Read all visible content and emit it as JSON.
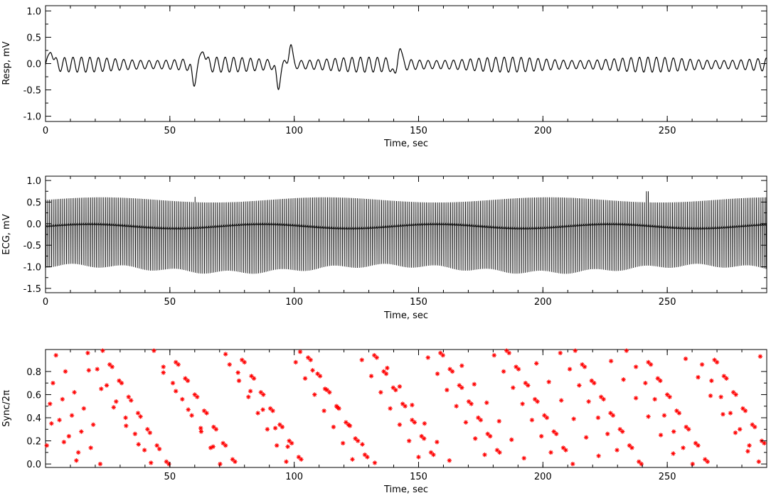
{
  "chart_data": [
    {
      "type": "line",
      "xlabel": "Time, sec",
      "ylabel": "Resp, mV",
      "xlim": [
        0,
        290
      ],
      "ylim": [
        -1.1,
        1.1
      ],
      "xticks": [
        0,
        50,
        100,
        150,
        200,
        250
      ],
      "yticks": [
        -1.0,
        -0.5,
        0.0,
        0.5,
        1.0
      ],
      "ytick_labels": [
        "-1.0",
        "-0.5",
        "0.0",
        "0.5",
        "1.0"
      ],
      "grid": false,
      "color": "#000000",
      "signal": {
        "baseline": -0.02,
        "amplitude": 0.13,
        "period_sec": 3.4,
        "events": [
          {
            "t": 2.3,
            "value": 0.3
          },
          {
            "t": 59.5,
            "value": -0.4
          },
          {
            "t": 63.5,
            "value": 0.32
          },
          {
            "t": 93.5,
            "value": -0.48
          },
          {
            "t": 98.5,
            "value": 0.36
          },
          {
            "t": 140.5,
            "value": -0.3
          },
          {
            "t": 142.3,
            "value": 0.36
          }
        ]
      }
    },
    {
      "type": "line",
      "xlabel": "Time, sec",
      "ylabel": "ECG, mV",
      "xlim": [
        0,
        290
      ],
      "ylim": [
        -1.6,
        1.1
      ],
      "xticks": [
        0,
        50,
        100,
        150,
        200,
        250
      ],
      "yticks": [
        -1.5,
        -1.0,
        -0.5,
        0.0,
        0.5,
        1.0
      ],
      "ytick_labels": [
        "-1.5",
        "-1.0",
        "-0.5",
        "0.0",
        "0.5",
        "1.0"
      ],
      "grid": false,
      "color": "#000000",
      "signal": {
        "beat_interval_sec": 0.75,
        "r_peak": 0.55,
        "s_trough": -1.05,
        "baseline": -0.08,
        "events": [
          {
            "t": 60,
            "value": 0.62
          },
          {
            "t": 242,
            "value": 0.75
          }
        ]
      }
    },
    {
      "type": "scatter",
      "xlabel": "Time, sec",
      "ylabel": "Sync/2π",
      "xlim": [
        0,
        290
      ],
      "ylim": [
        -0.03,
        0.99
      ],
      "xticks": [
        50,
        100,
        150,
        200,
        250
      ],
      "yticks": [
        0.0,
        0.2,
        0.4,
        0.6,
        0.8
      ],
      "ytick_labels": [
        "0.0",
        "0.2",
        "0.4",
        "0.6",
        "0.8"
      ],
      "grid": false,
      "color": "#ff0000",
      "marker": "asterisk",
      "series": [
        {
          "x": [
            0.5,
            4.2,
            8,
            11.6,
            15.4,
            19.2,
            23,
            26.8,
            30.6,
            34.4,
            38.2,
            42,
            45.8,
            49.6,
            53.4,
            57.2,
            61,
            64.8,
            68.6,
            72.4,
            76.2,
            80,
            83.8,
            87.6,
            91.4,
            95.2,
            99,
            102.8,
            106.6,
            110.4,
            114.2,
            118,
            121.8,
            125.6,
            129.4,
            133.2,
            137,
            140.8,
            144.6,
            148.4,
            152.2,
            156,
            159.8,
            163.6,
            167.4,
            171.2,
            175,
            178.8,
            182.6,
            186.4,
            190.2,
            194,
            197.8,
            201.6,
            205.4,
            209.2,
            213,
            216.8,
            220.6,
            224.4,
            228.2,
            232,
            235.8,
            239.6,
            243.4,
            247.2,
            251,
            254.8,
            258.6,
            262.4,
            266.2,
            270,
            273.8,
            277.6,
            281.4,
            285.2,
            289
          ],
          "y": [
            0.16,
            0.94,
            0.8,
            0.62,
            0.48,
            0.34,
            0.98,
            0.84,
            0.7,
            0.55,
            0.41,
            0.27,
            0.13,
            0.0,
            0.86,
            0.72,
            0.58,
            0.44,
            0.3,
            0.16,
            0.02,
            0.88,
            0.74,
            0.6,
            0.46,
            0.32,
            0.18,
            0.04,
            0.9,
            0.76,
            0.62,
            0.48,
            0.34,
            0.2,
            0.06,
            0.92,
            0.78,
            0.64,
            0.5,
            0.36,
            0.22,
            0.08,
            0.94,
            0.8,
            0.66,
            0.52,
            0.38,
            0.24,
            0.1,
            0.96,
            0.82,
            0.68,
            0.54,
            0.4,
            0.26,
            0.12,
            0.98,
            0.84,
            0.7,
            0.56,
            0.42,
            0.28,
            0.14,
            0.0,
            0.86,
            0.72,
            0.58,
            0.44,
            0.3,
            0.16,
            0.02,
            0.88,
            0.74,
            0.6,
            0.46,
            0.32,
            0.18
          ]
        },
        {
          "x": [
            1.8,
            5.6,
            9.4,
            13.2,
            17,
            20.8,
            24.6,
            28.4,
            32.2,
            36,
            39.8,
            43.6,
            47.4,
            51.2,
            55,
            58.8,
            62.6,
            66.4,
            70.2,
            74,
            77.8,
            81.6,
            85.4,
            89.2,
            93,
            96.8,
            100.6,
            104.4,
            108.2,
            112,
            115.8,
            119.6,
            123.4,
            127.2,
            131,
            134.8,
            138.6,
            142.4,
            146.2,
            150,
            153.8,
            157.6,
            161.4,
            165.2,
            169,
            172.8,
            176.6,
            180.4,
            184.2,
            188,
            191.8,
            195.6,
            199.4,
            203.2,
            207,
            210.8,
            214.6,
            218.4,
            222.2,
            226,
            229.8,
            233.6,
            237.4,
            241.2,
            245,
            248.8,
            252.6,
            256.4,
            260.2,
            264,
            267.8,
            271.6,
            275.4,
            279.2,
            283,
            286.8
          ],
          "y": [
            0.52,
            0.38,
            0.24,
            0.1,
            0.96,
            0.82,
            0.68,
            0.54,
            0.4,
            0.26,
            0.12,
            0.98,
            0.84,
            0.7,
            0.56,
            0.42,
            0.28,
            0.14,
            0.0,
            0.86,
            0.72,
            0.58,
            0.44,
            0.3,
            0.16,
            0.02,
            0.88,
            0.74,
            0.6,
            0.46,
            0.32,
            0.18,
            0.04,
            0.9,
            0.76,
            0.62,
            0.48,
            0.34,
            0.2,
            0.06,
            0.92,
            0.78,
            0.64,
            0.5,
            0.36,
            0.22,
            0.08,
            0.94,
            0.8,
            0.66,
            0.52,
            0.38,
            0.24,
            0.1,
            0.96,
            0.82,
            0.68,
            0.54,
            0.4,
            0.26,
            0.12,
            0.98,
            0.84,
            0.7,
            0.56,
            0.42,
            0.28,
            0.14,
            0.0,
            0.86,
            0.72,
            0.58,
            0.44,
            0.3,
            0.16,
            0.02
          ]
        },
        {
          "x": [
            3,
            6.8,
            10.6,
            14.4,
            18.2,
            22,
            25.8,
            29.6,
            33.4,
            37.2,
            41,
            44.8,
            48.6,
            52.4,
            56.2,
            60,
            63.8,
            67.6,
            71.4,
            75.2,
            79,
            82.8,
            86.6,
            90.4,
            94.2,
            98,
            101.8,
            105.6,
            109.4,
            113.2,
            117,
            120.8,
            124.6,
            128.4,
            132.2,
            136,
            139.8,
            143.6,
            147.4,
            151.2,
            155,
            158.8,
            162.6,
            166.4,
            170.2,
            174,
            177.8,
            181.6,
            185.4,
            189.2,
            193,
            196.8,
            200.6,
            204.4,
            208.2,
            212,
            215.8,
            219.6,
            223.4,
            227.2,
            231,
            234.8,
            238.6,
            242.4,
            246.2,
            250,
            253.8,
            257.6,
            261.4,
            265.2,
            269,
            272.8,
            276.6,
            280.4,
            284.2,
            288
          ],
          "y": [
            0.7,
            0.56,
            0.42,
            0.28,
            0.14,
            0.0,
            0.86,
            0.72,
            0.58,
            0.44,
            0.3,
            0.16,
            0.02,
            0.88,
            0.74,
            0.6,
            0.46,
            0.32,
            0.18,
            0.04,
            0.9,
            0.76,
            0.62,
            0.48,
            0.34,
            0.2,
            0.06,
            0.92,
            0.78,
            0.64,
            0.5,
            0.36,
            0.22,
            0.08,
            0.94,
            0.8,
            0.66,
            0.52,
            0.38,
            0.24,
            0.1,
            0.96,
            0.82,
            0.68,
            0.54,
            0.4,
            0.26,
            0.12,
            0.98,
            0.84,
            0.7,
            0.56,
            0.42,
            0.28,
            0.14,
            0.0,
            0.86,
            0.72,
            0.58,
            0.44,
            0.3,
            0.16,
            0.02,
            0.88,
            0.74,
            0.6,
            0.46,
            0.32,
            0.18,
            0.04,
            0.9,
            0.76,
            0.62,
            0.48,
            0.34,
            0.2
          ]
        },
        {
          "x": [
            2.4,
            7.4,
            12.4,
            17.4,
            22.4,
            27.4,
            32.4,
            37.4,
            42.4,
            47.4,
            52.4,
            57.4,
            62.4,
            67.4,
            72.4,
            77.4,
            82.4,
            87.4,
            92.4,
            97.4,
            102.4,
            107.4,
            112.4,
            117.4,
            122.4,
            127.4,
            132.4,
            137.4,
            142.4,
            147.4,
            152.4,
            157.4,
            162.4,
            167.4,
            172.4,
            177.4,
            182.4,
            187.4,
            192.4,
            197.4,
            202.4,
            207.4,
            212.4,
            217.4,
            222.4,
            227.4,
            232.4,
            237.4,
            242.4,
            247.4,
            252.4,
            257.4,
            262.4,
            267.4,
            272.4,
            277.4,
            282.4,
            287.4
          ],
          "y": [
            0.35,
            0.19,
            0.03,
            0.81,
            0.65,
            0.49,
            0.33,
            0.17,
            0.01,
            0.79,
            0.63,
            0.47,
            0.31,
            0.15,
            0.95,
            0.79,
            0.63,
            0.47,
            0.31,
            0.15,
            0.97,
            0.81,
            0.65,
            0.49,
            0.33,
            0.17,
            0.01,
            0.83,
            0.67,
            0.51,
            0.35,
            0.19,
            0.03,
            0.85,
            0.69,
            0.53,
            0.37,
            0.21,
            0.05,
            0.87,
            0.71,
            0.55,
            0.39,
            0.23,
            0.07,
            0.89,
            0.73,
            0.57,
            0.41,
            0.25,
            0.09,
            0.91,
            0.75,
            0.59,
            0.43,
            0.27,
            0.11,
            0.93
          ]
        }
      ]
    }
  ]
}
